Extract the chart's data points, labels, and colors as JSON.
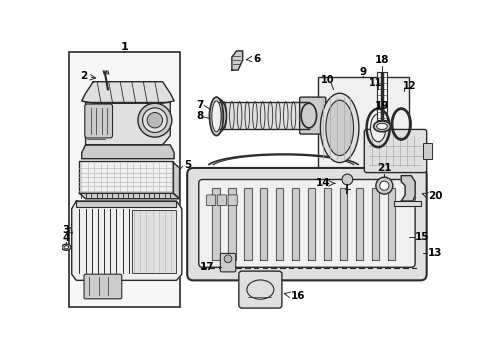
{
  "bg_color": "#ffffff",
  "lc": "#2a2a2a",
  "tc": "#000000",
  "fig_width": 4.9,
  "fig_height": 3.6,
  "dpi": 100
}
